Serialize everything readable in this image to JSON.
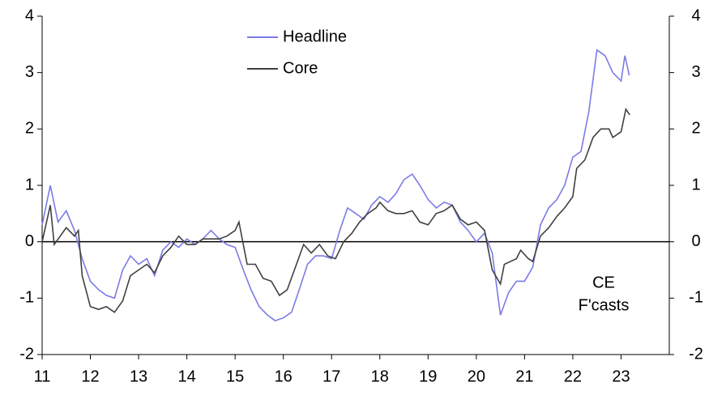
{
  "chart_data": {
    "type": "line",
    "xlim": [
      11,
      24
    ],
    "xticks": [
      11,
      12,
      13,
      14,
      15,
      16,
      17,
      18,
      19,
      20,
      21,
      22,
      23
    ],
    "ylim": [
      -2,
      4
    ],
    "yticks": [
      -2,
      -1,
      0,
      1,
      2,
      3,
      4
    ],
    "y2lim": [
      -2,
      4
    ],
    "y2ticks": [
      -2,
      -1,
      0,
      1,
      2,
      3,
      4
    ],
    "legend": "upper-left",
    "annotation": [
      "CE",
      "F'casts"
    ],
    "series": [
      {
        "name": "Headline",
        "color": "#7b7be6",
        "x": [
          11.0,
          11.17,
          11.33,
          11.5,
          11.67,
          11.83,
          12.0,
          12.17,
          12.33,
          12.5,
          12.67,
          12.83,
          13.0,
          13.17,
          13.33,
          13.5,
          13.67,
          13.83,
          14.0,
          14.17,
          14.33,
          14.5,
          14.67,
          14.83,
          15.0,
          15.17,
          15.33,
          15.5,
          15.67,
          15.83,
          16.0,
          16.17,
          16.33,
          16.5,
          16.67,
          16.83,
          17.0,
          17.17,
          17.33,
          17.5,
          17.67,
          17.83,
          18.0,
          18.17,
          18.33,
          18.5,
          18.67,
          18.83,
          19.0,
          19.17,
          19.33,
          19.5,
          19.67,
          19.83,
          20.0,
          20.17,
          20.33,
          20.5,
          20.67,
          20.83,
          21.0,
          21.17,
          21.33,
          21.5,
          21.67,
          21.83,
          22.0,
          22.17,
          22.33,
          22.5,
          22.67,
          22.83,
          23.0,
          23.08,
          23.17
        ],
        "values": [
          0.3,
          1.0,
          0.35,
          0.55,
          0.2,
          -0.3,
          -0.7,
          -0.85,
          -0.95,
          -1.0,
          -0.5,
          -0.25,
          -0.4,
          -0.3,
          -0.6,
          -0.15,
          0.0,
          -0.1,
          0.05,
          -0.05,
          0.05,
          0.2,
          0.05,
          -0.05,
          -0.1,
          -0.5,
          -0.85,
          -1.15,
          -1.3,
          -1.4,
          -1.35,
          -1.25,
          -0.85,
          -0.4,
          -0.25,
          -0.25,
          -0.3,
          0.2,
          0.6,
          0.5,
          0.4,
          0.65,
          0.8,
          0.7,
          0.85,
          1.1,
          1.2,
          1.0,
          0.75,
          0.6,
          0.7,
          0.65,
          0.35,
          0.2,
          0.0,
          0.15,
          -0.2,
          -1.3,
          -0.9,
          -0.7,
          -0.7,
          -0.45,
          0.3,
          0.6,
          0.75,
          1.0,
          1.5,
          1.6,
          2.3,
          3.4,
          3.3,
          3.0,
          2.85,
          3.3,
          2.95
        ]
      },
      {
        "name": "Core",
        "color": "#404040",
        "x": [
          11.0,
          11.17,
          11.25,
          11.5,
          11.67,
          11.75,
          11.83,
          12.0,
          12.17,
          12.33,
          12.5,
          12.67,
          12.83,
          13.0,
          13.17,
          13.33,
          13.5,
          13.67,
          13.83,
          14.0,
          14.17,
          14.33,
          14.5,
          14.67,
          14.83,
          15.0,
          15.08,
          15.25,
          15.42,
          15.58,
          15.75,
          15.92,
          16.08,
          16.25,
          16.42,
          16.58,
          16.75,
          16.92,
          17.08,
          17.25,
          17.42,
          17.58,
          17.75,
          17.92,
          18.0,
          18.17,
          18.33,
          18.5,
          18.67,
          18.83,
          19.0,
          19.17,
          19.33,
          19.5,
          19.67,
          19.83,
          20.0,
          20.17,
          20.33,
          20.5,
          20.58,
          20.83,
          20.92,
          21.08,
          21.17,
          21.33,
          21.5,
          21.67,
          21.83,
          22.0,
          22.08,
          22.25,
          22.42,
          22.58,
          22.75,
          22.83,
          23.0,
          23.1,
          23.18
        ],
        "values": [
          0.0,
          0.65,
          -0.05,
          0.25,
          0.1,
          0.2,
          -0.6,
          -1.15,
          -1.2,
          -1.15,
          -1.25,
          -1.05,
          -0.6,
          -0.5,
          -0.4,
          -0.55,
          -0.25,
          -0.1,
          0.1,
          -0.05,
          -0.05,
          0.05,
          0.05,
          0.05,
          0.1,
          0.2,
          0.35,
          -0.4,
          -0.4,
          -0.65,
          -0.7,
          -0.95,
          -0.85,
          -0.45,
          -0.05,
          -0.2,
          -0.05,
          -0.25,
          -0.3,
          0.0,
          0.15,
          0.35,
          0.5,
          0.6,
          0.7,
          0.55,
          0.5,
          0.5,
          0.55,
          0.35,
          0.3,
          0.5,
          0.55,
          0.65,
          0.4,
          0.3,
          0.35,
          0.2,
          -0.5,
          -0.75,
          -0.4,
          -0.3,
          -0.15,
          -0.3,
          -0.35,
          0.1,
          0.25,
          0.45,
          0.6,
          0.8,
          1.3,
          1.45,
          1.85,
          2.0,
          2.0,
          1.85,
          1.95,
          2.35,
          2.25
        ]
      }
    ]
  }
}
